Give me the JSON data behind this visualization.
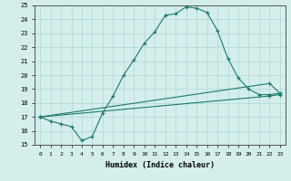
{
  "xlabel": "Humidex (Indice chaleur)",
  "xlim": [
    -0.5,
    23.5
  ],
  "ylim": [
    15,
    25
  ],
  "yticks": [
    15,
    16,
    17,
    18,
    19,
    20,
    21,
    22,
    23,
    24,
    25
  ],
  "xticks": [
    0,
    1,
    2,
    3,
    4,
    5,
    6,
    7,
    8,
    9,
    10,
    11,
    12,
    13,
    14,
    15,
    16,
    17,
    18,
    19,
    20,
    21,
    22,
    23
  ],
  "line_color": "#1a7a6a",
  "bg_color": "#d4eeec",
  "grid_color": "#aed8d4",
  "line1_x": [
    0,
    1,
    2,
    3,
    4,
    5,
    6,
    7,
    8,
    9,
    10,
    11,
    12,
    13,
    14,
    15,
    16,
    17,
    18,
    19,
    20,
    21,
    22,
    23
  ],
  "line1_y": [
    17.0,
    16.7,
    16.5,
    16.3,
    15.3,
    15.6,
    17.3,
    18.5,
    20.0,
    21.1,
    22.3,
    23.1,
    24.3,
    24.4,
    24.9,
    24.8,
    24.5,
    23.2,
    21.2,
    19.8,
    19.0,
    18.6,
    18.6,
    18.7
  ],
  "line2_x": [
    0,
    22,
    23
  ],
  "line2_y": [
    17.0,
    19.4,
    18.7
  ],
  "line3_x": [
    0,
    22,
    23
  ],
  "line3_y": [
    17.0,
    18.5,
    18.6
  ]
}
